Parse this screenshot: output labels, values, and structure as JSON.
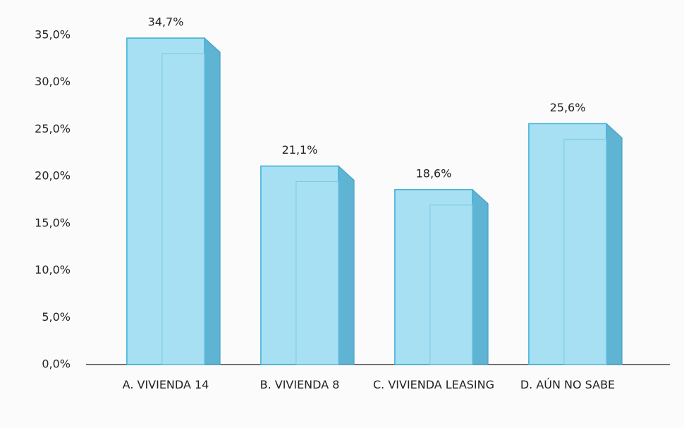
{
  "chart_data": {
    "type": "bar",
    "categories": [
      "A.   VIVIENDA 14",
      "B.   VIVIENDA 8",
      "C.   VIVIENDA LEASING",
      "D.   AÚN NO SABE"
    ],
    "values": [
      34.7,
      21.1,
      18.6,
      25.6
    ],
    "value_labels": [
      "34,7%",
      "21,1%",
      "18,6%",
      "25,6%"
    ],
    "color": "#a6e0f2",
    "ylim": [
      0,
      35
    ],
    "yticks": [
      {
        "value": 0,
        "label": "0,0%"
      },
      {
        "value": 5,
        "label": "5,0%"
      },
      {
        "value": 10,
        "label": "10,0%"
      },
      {
        "value": 15,
        "label": "15,0%"
      },
      {
        "value": 20,
        "label": "20,0%"
      },
      {
        "value": 25,
        "label": "25,0%"
      },
      {
        "value": 30,
        "label": "30,0%"
      },
      {
        "value": 35,
        "label": "35,0%"
      }
    ],
    "grid": false
  }
}
